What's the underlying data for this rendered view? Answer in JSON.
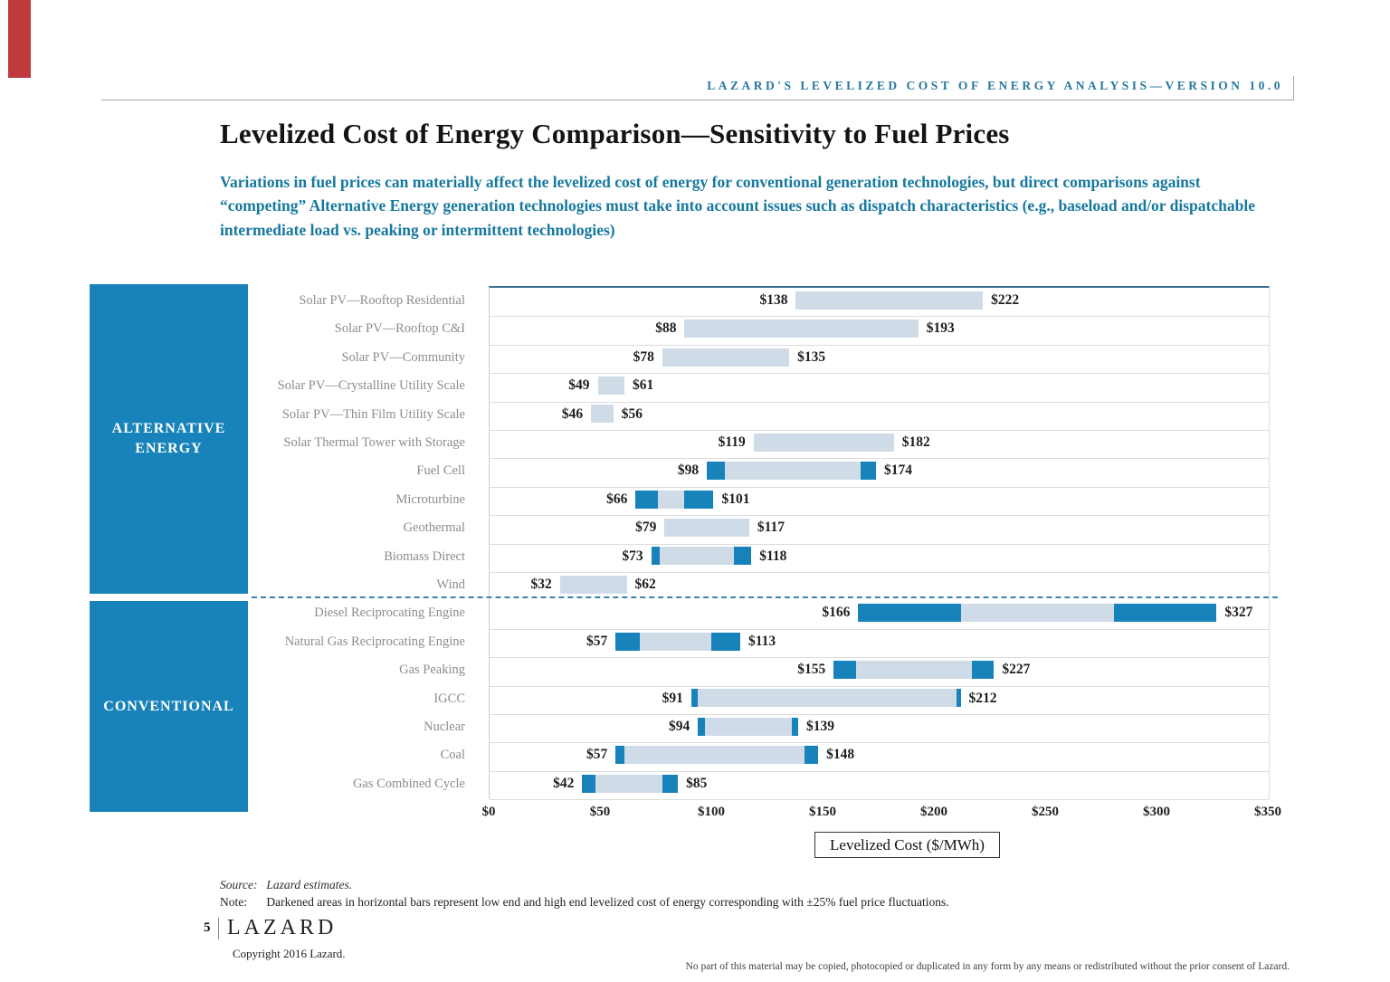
{
  "page": {
    "eyebrow": "LAZARD'S LEVELIZED COST OF ENERGY ANALYSIS—VERSION 10.0",
    "title": "Levelized Cost of Energy Comparison—Sensitivity to Fuel Prices",
    "subtitle": "Variations in fuel prices can materially affect the levelized cost of energy for conventional generation technologies, but direct comparisons against “competing” Alternative Energy generation technologies must take into account issues such as dispatch characteristics (e.g., baseload and/or dispatchable intermediate load vs. peaking or intermittent technologies)",
    "source_label": "Source:",
    "source_text": "Lazard estimates.",
    "note_label": "Note:",
    "note_text": "Darkened areas in horizontal bars represent low end and high end levelized cost of energy corresponding with ±25% fuel price fluctuations.",
    "page_number": "5",
    "logo": "LAZARD",
    "copyright": "Copyright 2016 Lazard.",
    "disclaimer": "No part of this material may be copied, photocopied or duplicated in any form by any means or redistributed without the prior consent of Lazard."
  },
  "colors": {
    "accent_blue": "#1883ba",
    "bar_light": "#cfdbe6",
    "eyebrow_teal": "#26789d",
    "subtitle_teal": "#17789f",
    "dashed_divider": "#3e84a8",
    "ribbon_red": "#bf3a3d"
  },
  "chart_data": {
    "type": "bar",
    "orientation": "horizontal-range",
    "xlabel": "Levelized Cost ($/MWh)",
    "xlim": [
      0,
      350
    ],
    "grid": "row-separators",
    "legend": "none",
    "darkened_meaning": "Darkened bar ends show low/high levelized cost under ±25% fuel price fluctuations",
    "x_ticks": [
      {
        "value": 0,
        "label": "$0"
      },
      {
        "value": 50,
        "label": "$50"
      },
      {
        "value": 100,
        "label": "$100"
      },
      {
        "value": 150,
        "label": "$150"
      },
      {
        "value": 200,
        "label": "$200"
      },
      {
        "value": 250,
        "label": "$250"
      },
      {
        "value": 300,
        "label": "$300"
      },
      {
        "value": 350,
        "label": "$350"
      }
    ],
    "sections": [
      {
        "label": "ALTERNATIVE ENERGY"
      },
      {
        "label": "CONVENTIONAL"
      }
    ],
    "rows": [
      {
        "label": "Solar PV—Rooftop Residential",
        "section": 0,
        "low": 138,
        "high": 222,
        "base_low": 138,
        "base_high": 222,
        "low_label": "$138",
        "high_label": "$222"
      },
      {
        "label": "Solar PV—Rooftop C&I",
        "section": 0,
        "low": 88,
        "high": 193,
        "base_low": 88,
        "base_high": 193,
        "low_label": "$88",
        "high_label": "$193"
      },
      {
        "label": "Solar PV—Community",
        "section": 0,
        "low": 78,
        "high": 135,
        "base_low": 78,
        "base_high": 135,
        "low_label": "$78",
        "high_label": "$135"
      },
      {
        "label": "Solar PV—Crystalline Utility Scale",
        "section": 0,
        "low": 49,
        "high": 61,
        "base_low": 49,
        "base_high": 61,
        "low_label": "$49",
        "high_label": "$61"
      },
      {
        "label": "Solar PV—Thin Film Utility Scale",
        "section": 0,
        "low": 46,
        "high": 56,
        "base_low": 46,
        "base_high": 56,
        "low_label": "$46",
        "high_label": "$56"
      },
      {
        "label": "Solar Thermal Tower with Storage",
        "section": 0,
        "low": 119,
        "high": 182,
        "base_low": 119,
        "base_high": 182,
        "low_label": "$119",
        "high_label": "$182"
      },
      {
        "label": "Fuel Cell",
        "section": 0,
        "low": 98,
        "high": 174,
        "base_low": 106,
        "base_high": 167,
        "low_label": "$98",
        "high_label": "$174"
      },
      {
        "label": "Microturbine",
        "section": 0,
        "low": 66,
        "high": 101,
        "base_low": 76,
        "base_high": 88,
        "low_label": "$66",
        "high_label": "$101"
      },
      {
        "label": "Geothermal",
        "section": 0,
        "low": 79,
        "high": 117,
        "base_low": 79,
        "base_high": 117,
        "low_label": "$79",
        "high_label": "$117"
      },
      {
        "label": "Biomass Direct",
        "section": 0,
        "low": 73,
        "high": 118,
        "base_low": 77,
        "base_high": 110,
        "low_label": "$73",
        "high_label": "$118"
      },
      {
        "label": "Wind",
        "section": 0,
        "low": 32,
        "high": 62,
        "base_low": 32,
        "base_high": 62,
        "low_label": "$32",
        "high_label": "$62"
      },
      {
        "label": "Diesel Reciprocating Engine",
        "section": 1,
        "low": 166,
        "high": 327,
        "base_low": 212,
        "base_high": 281,
        "low_label": "$166",
        "high_label": "$327"
      },
      {
        "label": "Natural Gas Reciprocating Engine",
        "section": 1,
        "low": 57,
        "high": 113,
        "base_low": 68,
        "base_high": 100,
        "low_label": "$57",
        "high_label": "$113"
      },
      {
        "label": "Gas Peaking",
        "section": 1,
        "low": 155,
        "high": 227,
        "base_low": 165,
        "base_high": 217,
        "low_label": "$155",
        "high_label": "$227"
      },
      {
        "label": "IGCC",
        "section": 1,
        "low": 91,
        "high": 212,
        "base_low": 94,
        "base_high": 210,
        "low_label": "$91",
        "high_label": "$212"
      },
      {
        "label": "Nuclear",
        "section": 1,
        "low": 94,
        "high": 139,
        "base_low": 97,
        "base_high": 136,
        "low_label": "$94",
        "high_label": "$139"
      },
      {
        "label": "Coal",
        "section": 1,
        "low": 57,
        "high": 148,
        "base_low": 61,
        "base_high": 142,
        "low_label": "$57",
        "high_label": "$148"
      },
      {
        "label": "Gas Combined Cycle",
        "section": 1,
        "low": 42,
        "high": 85,
        "base_low": 48,
        "base_high": 78,
        "low_label": "$42",
        "high_label": "$85"
      }
    ]
  }
}
